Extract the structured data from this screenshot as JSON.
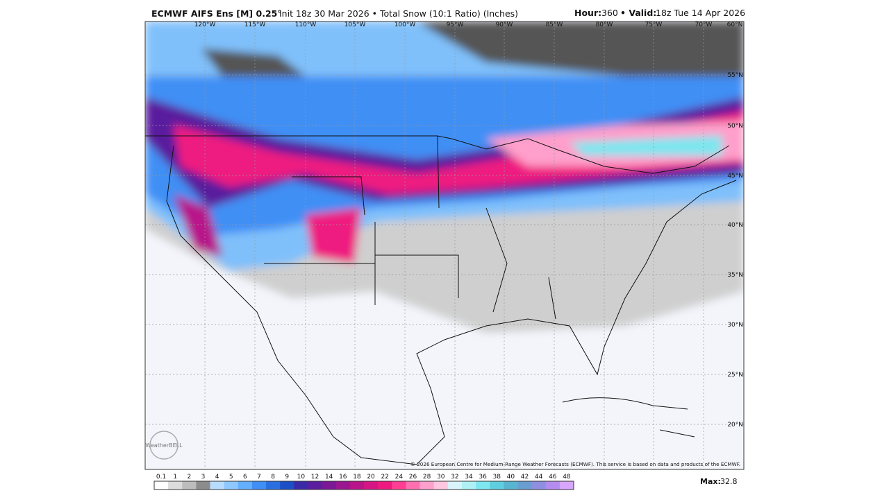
{
  "header": {
    "title": "ECMWF AIFS Ens [M] 0.25°",
    "subtitle": "Init 18z 30 Mar 2026 • Total Snow (10:1 Ratio) (Inches)",
    "hour_label": "Hour:",
    "hour": "360",
    "valid_label": "• Valid:",
    "valid": "18z Tue 14 Apr 2026"
  },
  "map": {
    "lon_labels": [
      "120°W",
      "115°W",
      "110°W",
      "105°W",
      "100°W",
      "95°W",
      "90°W",
      "85°W",
      "80°W",
      "75°W",
      "70°W",
      "60°N"
    ],
    "lat_labels": [
      "55°N",
      "50°N",
      "45°N",
      "40°N",
      "35°N",
      "30°N",
      "25°N",
      "20°N"
    ],
    "copyright": "© 2026 European Centre for Medium-Range Weather Forecasts (ECMWF). This service is based on data and products of the ECMWF.",
    "logo": "WeatherBELL"
  },
  "legend": {
    "labels": [
      "0.1",
      "1",
      "2",
      "3",
      "4",
      "5",
      "6",
      "7",
      "8",
      "9",
      "10",
      "12",
      "14",
      "16",
      "18",
      "20",
      "22",
      "24",
      "26",
      "28",
      "30",
      "32",
      "34",
      "36",
      "38",
      "40",
      "42",
      "44",
      "46",
      "48"
    ],
    "colors": [
      "#ffffff",
      "#dcdcdc",
      "#bdbdbd",
      "#8c8c8c",
      "#b8dcff",
      "#8ec8ff",
      "#64afff",
      "#3f8ff5",
      "#2a6fe0",
      "#1c4fc6",
      "#3a2aa8",
      "#5a1e9e",
      "#7a1896",
      "#9a1690",
      "#b8158a",
      "#d61584",
      "#ee1a80",
      "#ff3d93",
      "#ff6fb0",
      "#ff9fcb",
      "#ffc6df",
      "#d9f3fa",
      "#aef0f5",
      "#7ee6ef",
      "#5fcfe0",
      "#58b4d0",
      "#6a9ed0",
      "#8e8fe0",
      "#b48cf0",
      "#d8a6ff"
    ],
    "max_label": "Max:",
    "max": "32.8"
  }
}
